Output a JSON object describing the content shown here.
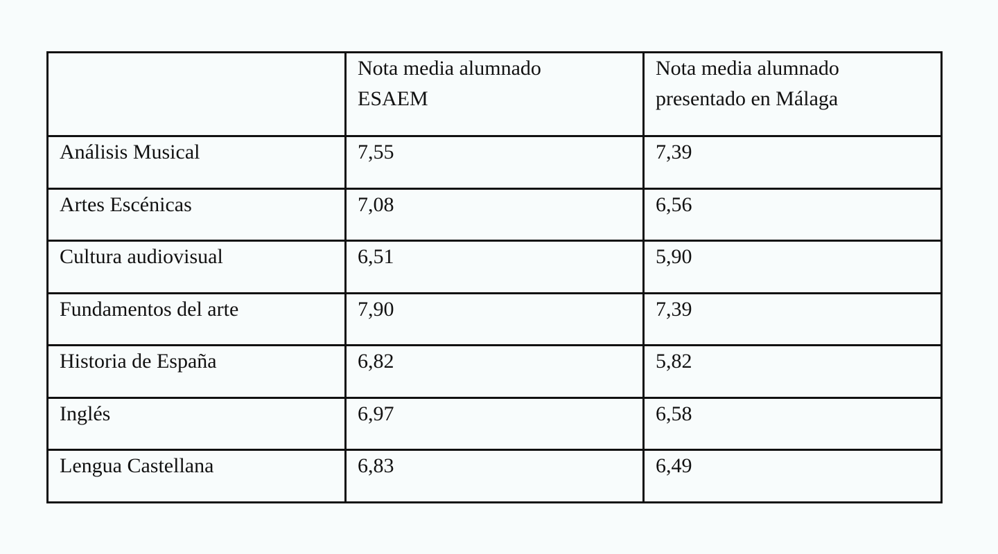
{
  "table": {
    "header": [
      "Nota media alumnado ESAEM",
      "Nota media alumnado presentado en Málaga"
    ],
    "rows": [
      [
        "Análisis Musical",
        "7,55",
        "7,39"
      ],
      [
        "Artes Escénicas",
        "7,08",
        "6,56"
      ],
      [
        "Cultura audiovisual",
        "6,51",
        "5,90"
      ],
      [
        "Fundamentos del arte",
        "7,90",
        "7,39"
      ],
      [
        "Historia de España",
        "6,82",
        "5,82"
      ],
      [
        "Inglés",
        "6,97",
        "6,58"
      ],
      [
        "Lengua Castellana",
        "6,83",
        "6,49"
      ]
    ]
  }
}
